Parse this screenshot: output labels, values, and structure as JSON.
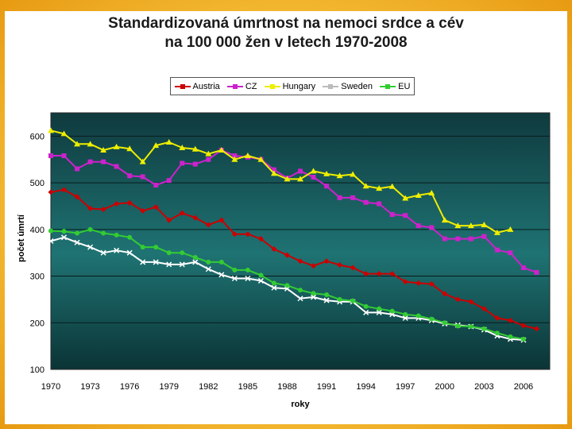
{
  "title_line1": "Standardizovaná úmrtnost na nemoci srdce a cév",
  "title_line2": "na 100 000 žen v letech 1970-2008",
  "chart_data": {
    "type": "line",
    "title": "Standardizovaná úmrtnost na nemoci srdce a cév na 100 000 žen v letech 1970-2008",
    "xlabel": "roky",
    "ylabel": "počet úmrtí",
    "xlim": [
      1970,
      2008
    ],
    "ylim": [
      100,
      650
    ],
    "x_ticks": [
      "1970",
      "1973",
      "1976",
      "1979",
      "1982",
      "1985",
      "1988",
      "1991",
      "1994",
      "1997",
      "2000",
      "2003",
      "2006"
    ],
    "y_ticks": [
      "100",
      "200",
      "300",
      "400",
      "500",
      "600"
    ],
    "grid": true,
    "legend_position": "top",
    "series": [
      {
        "name": "Austria",
        "color": "#cc0000",
        "marker": "diamond",
        "x": [
          1970,
          1971,
          1972,
          1973,
          1974,
          1975,
          1976,
          1977,
          1978,
          1979,
          1980,
          1981,
          1982,
          1983,
          1984,
          1985,
          1986,
          1987,
          1988,
          1989,
          1990,
          1991,
          1992,
          1993,
          1994,
          1995,
          1996,
          1997,
          1998,
          1999,
          2000,
          2001,
          2002,
          2003,
          2004,
          2005,
          2006,
          2007
        ],
        "values": [
          480,
          485,
          470,
          445,
          443,
          455,
          457,
          440,
          448,
          420,
          435,
          425,
          410,
          420,
          390,
          390,
          380,
          358,
          345,
          332,
          322,
          332,
          324,
          318,
          305,
          305,
          305,
          288,
          285,
          283,
          262,
          250,
          245,
          230,
          210,
          205,
          194,
          187
        ]
      },
      {
        "name": "CZ",
        "color": "#cc22cc",
        "marker": "square",
        "x": [
          1970,
          1971,
          1972,
          1973,
          1974,
          1975,
          1976,
          1977,
          1978,
          1979,
          1980,
          1981,
          1982,
          1983,
          1984,
          1985,
          1986,
          1987,
          1988,
          1989,
          1990,
          1991,
          1992,
          1993,
          1994,
          1995,
          1996,
          1997,
          1998,
          1999,
          2000,
          2001,
          2002,
          2003,
          2004,
          2005,
          2006,
          2007
        ],
        "values": [
          558,
          558,
          530,
          545,
          545,
          535,
          515,
          513,
          495,
          505,
          542,
          540,
          550,
          570,
          558,
          555,
          550,
          528,
          510,
          525,
          512,
          493,
          468,
          468,
          458,
          455,
          432,
          430,
          408,
          404,
          380,
          380,
          380,
          385,
          356,
          350,
          318,
          308
        ]
      },
      {
        "name": "Hungary",
        "color": "#eeee00",
        "marker": "triangle",
        "x": [
          1970,
          1971,
          1972,
          1973,
          1974,
          1975,
          1976,
          1977,
          1978,
          1979,
          1980,
          1981,
          1982,
          1983,
          1984,
          1985,
          1986,
          1987,
          1988,
          1989,
          1990,
          1991,
          1992,
          1993,
          1994,
          1995,
          1996,
          1997,
          1998,
          1999,
          2000,
          2001,
          2002,
          2003,
          2004,
          2005
        ],
        "values": [
          612,
          605,
          583,
          583,
          570,
          577,
          573,
          545,
          580,
          587,
          575,
          572,
          562,
          570,
          550,
          558,
          550,
          520,
          508,
          508,
          525,
          519,
          515,
          518,
          493,
          488,
          492,
          467,
          473,
          478,
          420,
          408,
          408,
          410,
          393,
          400
        ]
      },
      {
        "name": "Sweden",
        "color": "#ffffff",
        "marker": "x",
        "x": [
          1970,
          1971,
          1972,
          1973,
          1974,
          1975,
          1976,
          1977,
          1978,
          1979,
          1980,
          1981,
          1982,
          1983,
          1984,
          1985,
          1986,
          1987,
          1988,
          1989,
          1990,
          1991,
          1992,
          1993,
          1994,
          1995,
          1996,
          1997,
          1998,
          1999,
          2000,
          2001,
          2002,
          2003,
          2004,
          2005,
          2006
        ],
        "values": [
          375,
          383,
          372,
          362,
          350,
          355,
          350,
          330,
          330,
          325,
          325,
          330,
          315,
          303,
          295,
          295,
          290,
          275,
          273,
          252,
          255,
          248,
          245,
          245,
          222,
          222,
          218,
          210,
          210,
          205,
          198,
          195,
          192,
          185,
          172,
          165,
          163
        ]
      },
      {
        "name": "EU",
        "color": "#33cc33",
        "marker": "circle",
        "x": [
          1970,
          1971,
          1972,
          1973,
          1974,
          1975,
          1976,
          1977,
          1978,
          1979,
          1980,
          1981,
          1982,
          1983,
          1984,
          1985,
          1986,
          1987,
          1988,
          1989,
          1990,
          1991,
          1992,
          1993,
          1994,
          1995,
          1996,
          1997,
          1998,
          1999,
          2000,
          2001,
          2002,
          2003,
          2004,
          2005,
          2006
        ],
        "values": [
          397,
          396,
          392,
          400,
          392,
          388,
          383,
          362,
          362,
          350,
          350,
          340,
          330,
          330,
          313,
          313,
          302,
          285,
          280,
          270,
          263,
          260,
          250,
          247,
          235,
          230,
          225,
          218,
          215,
          208,
          200,
          193,
          192,
          187,
          178,
          170,
          165
        ]
      }
    ]
  }
}
